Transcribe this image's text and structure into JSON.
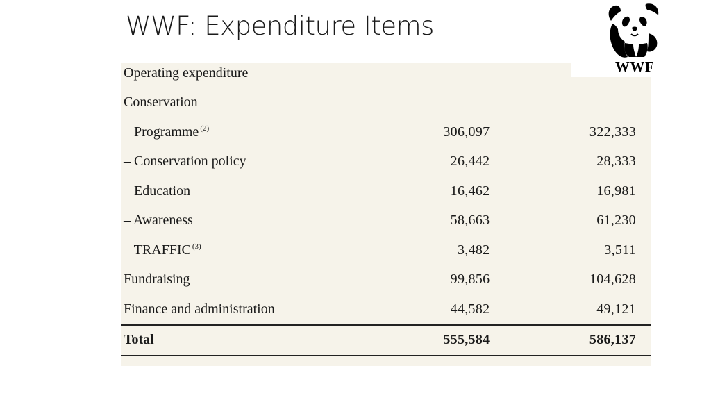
{
  "slide": {
    "title": "WWF: Expenditure Items"
  },
  "logo": {
    "text": "WWF",
    "icon": "panda-icon"
  },
  "table": {
    "rows": [
      {
        "label": "Operating expenditure",
        "note": "",
        "col1": "",
        "col2": ""
      },
      {
        "label": "Conservation",
        "note": "",
        "col1": "",
        "col2": ""
      },
      {
        "label": "– Programme",
        "note": "(2)",
        "col1": "306,097",
        "col2": "322,333"
      },
      {
        "label": "– Conservation policy",
        "note": "",
        "col1": "26,442",
        "col2": "28,333"
      },
      {
        "label": "– Education",
        "note": "",
        "col1": "16,462",
        "col2": "16,981"
      },
      {
        "label": "– Awareness",
        "note": "",
        "col1": "58,663",
        "col2": "61,230"
      },
      {
        "label": "– TRAFFIC",
        "note": "(3)",
        "col1": "3,482",
        "col2": "3,511"
      },
      {
        "label": "Fundraising",
        "note": "",
        "col1": "99,856",
        "col2": "104,628"
      },
      {
        "label": "Finance and administration",
        "note": "",
        "col1": "44,582",
        "col2": "49,121"
      }
    ],
    "total": {
      "label": "Total",
      "col1": "555,584",
      "col2": "586,137"
    }
  },
  "colors": {
    "panel_background": "#f6f3ea",
    "text": "#1a1a1a",
    "rule": "#222222"
  }
}
